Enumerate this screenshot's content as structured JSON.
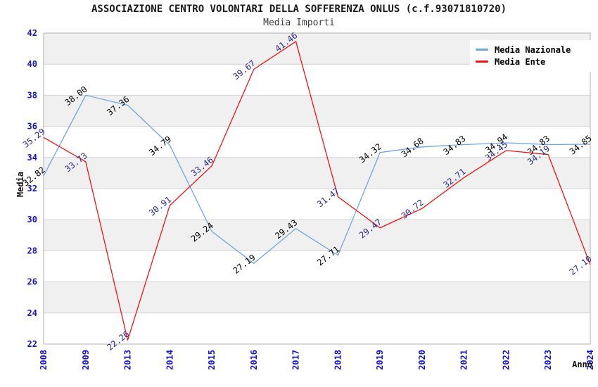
{
  "page": {
    "background": "#ffffff"
  },
  "chart_data": {
    "type": "line",
    "title": "ASSOCIAZIONE CENTRO VOLONTARI DELLA SOFFERENZA ONLUS (c.f.93071810720)",
    "subtitle": "Media Importi",
    "xlabel": "Anno",
    "ylabel": "Media",
    "categories": [
      "2008",
      "2009",
      "2013",
      "2014",
      "2015",
      "2016",
      "2017",
      "2018",
      "2019",
      "2020",
      "2021",
      "2022",
      "2023",
      "2024"
    ],
    "series": [
      {
        "name": "Media Nazionale",
        "color": "#6ea6e0",
        "label_color": "#000000",
        "values": [
          32.82,
          38.0,
          37.36,
          34.79,
          29.24,
          27.19,
          29.43,
          27.71,
          34.32,
          34.68,
          34.83,
          34.94,
          34.83,
          34.85
        ]
      },
      {
        "name": "Media Ente",
        "color": "#f01414",
        "label_color": "#28288e",
        "values": [
          35.29,
          33.73,
          22.26,
          30.91,
          33.46,
          39.67,
          41.46,
          31.47,
          29.47,
          30.72,
          32.71,
          34.45,
          34.19,
          27.1
        ]
      }
    ],
    "ylim": [
      22,
      42
    ],
    "ytick_step": 2,
    "yticks": [
      22,
      24,
      26,
      28,
      30,
      32,
      34,
      36,
      38,
      40,
      42
    ],
    "value_decimals": 2,
    "grid": true,
    "legend_position": "top-right",
    "colors": {
      "tick_label": "#1414cc",
      "stripe": "#f0f0f0",
      "gridline": "#d4d4d4",
      "plot_border": "#b0b0b0",
      "plot_background": "#ffffff"
    }
  }
}
